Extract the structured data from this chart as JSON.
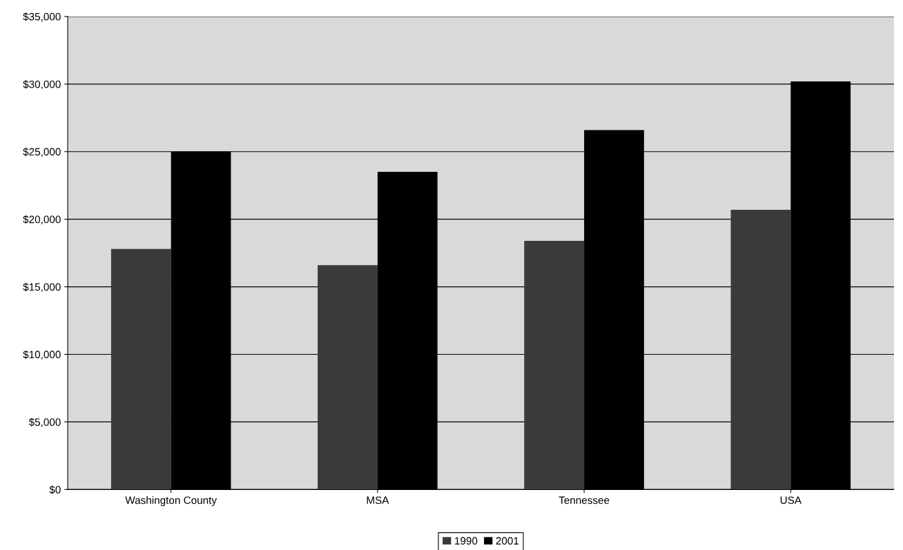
{
  "chart_data": {
    "type": "bar",
    "categories": [
      "Washington County",
      "MSA",
      "Tennessee",
      "USA"
    ],
    "series": [
      {
        "name": "1990",
        "color": "#3a3a3a",
        "values": [
          17800,
          16600,
          18400,
          20700
        ]
      },
      {
        "name": "2001",
        "color": "#000000",
        "values": [
          25000,
          23500,
          26600,
          30200
        ]
      }
    ],
    "ylim": [
      0,
      35000
    ],
    "yticks": [
      {
        "value": 0,
        "label": "$0"
      },
      {
        "value": 5000,
        "label": "$5,000"
      },
      {
        "value": 10000,
        "label": "$10,000"
      },
      {
        "value": 15000,
        "label": "$15,000"
      },
      {
        "value": 20000,
        "label": "$20,000"
      },
      {
        "value": 25000,
        "label": "$25,000"
      },
      {
        "value": 30000,
        "label": "$30,000"
      },
      {
        "value": 35000,
        "label": "$35,000"
      }
    ],
    "grid": "y",
    "legend": "bottom"
  }
}
